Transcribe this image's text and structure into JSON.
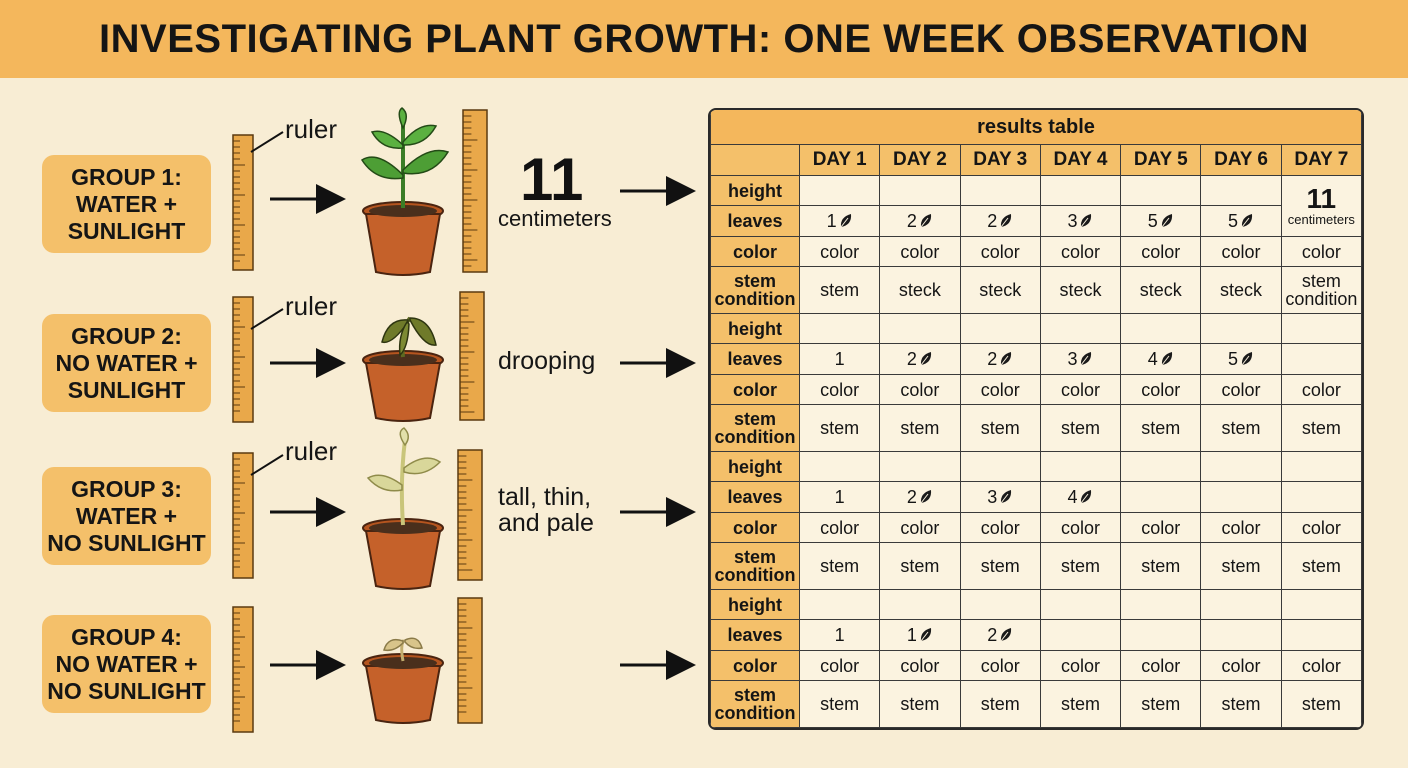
{
  "title": "INVESTIGATING PLANT GROWTH: ONE WEEK OBSERVATION",
  "groups": [
    {
      "lines": [
        "GROUP 1:",
        "WATER +",
        "SUNLIGHT"
      ],
      "ruler_label": "ruler",
      "observation": [
        "centimeters"
      ],
      "observation_value": "11"
    },
    {
      "lines": [
        "GROUP 2:",
        "NO WATER +",
        "SUNLIGHT"
      ],
      "ruler_label": "ruler",
      "observation": [
        "drooping"
      ]
    },
    {
      "lines": [
        "GROUP 3:",
        "WATER +",
        "NO SUNLIGHT"
      ],
      "ruler_label": "ruler",
      "observation": [
        "tall, thin,",
        "and pale"
      ]
    },
    {
      "lines": [
        "GROUP 4:",
        "NO WATER +",
        "NO SUNLIGHT"
      ]
    }
  ],
  "colors": {
    "header": "#f4b75c",
    "group_box": "#f4c06a",
    "background": "#f8edd4",
    "ruler": "#e9a84a",
    "pot": "#c5612a",
    "leaf_healthy": "#4d9e35",
    "leaf_drooping": "#6f7a2a",
    "leaf_pale": "#d9d79a",
    "leaf_dead": "#d8c48a"
  },
  "table": {
    "caption": "results table",
    "days": [
      "DAY 1",
      "DAY 2",
      "DAY 3",
      "DAY 4",
      "DAY 5",
      "DAY 6",
      "DAY 7"
    ],
    "day7_height_value": "11",
    "day7_height_unit": "centimeters",
    "groups": [
      {
        "rows": [
          {
            "label": [
              "height"
            ],
            "cells": [
              "",
              "",
              "",
              "",
              "",
              ""
            ]
          },
          {
            "label": [
              "leaves"
            ],
            "cells": [
              "1",
              "2",
              "2",
              "3",
              "5",
              "5"
            ],
            "leaf_icon": [
              true,
              true,
              true,
              true,
              true,
              true
            ]
          },
          {
            "label": [
              "color"
            ],
            "cells": [
              "color",
              "color",
              "color",
              "color",
              "color",
              "color",
              "color"
            ]
          },
          {
            "label": [
              "stem",
              "condition"
            ],
            "cells": [
              "stem",
              "steck",
              "steck",
              "steck",
              "steck",
              "steck",
              "stem condition"
            ]
          }
        ]
      },
      {
        "rows": [
          {
            "label": [
              "height"
            ],
            "cells": [
              "",
              "",
              "",
              "",
              "",
              "",
              ""
            ]
          },
          {
            "label": [
              "leaves"
            ],
            "cells": [
              "1",
              "2",
              "2",
              "3",
              "4",
              "5",
              ""
            ],
            "leaf_icon": [
              false,
              true,
              true,
              true,
              true,
              true,
              false
            ]
          },
          {
            "label": [
              "color"
            ],
            "cells": [
              "color",
              "color",
              "color",
              "color",
              "color",
              "color",
              "color"
            ]
          },
          {
            "label": [
              "stem",
              "condition"
            ],
            "cells": [
              "stem",
              "stem",
              "stem",
              "stem",
              "stem",
              "stem",
              "stem"
            ]
          }
        ]
      },
      {
        "rows": [
          {
            "label": [
              "height"
            ],
            "cells": [
              "",
              "",
              "",
              "",
              "",
              "",
              ""
            ]
          },
          {
            "label": [
              "leaves"
            ],
            "cells": [
              "1",
              "2",
              "3",
              "4",
              "",
              "",
              ""
            ],
            "leaf_icon": [
              false,
              true,
              true,
              true,
              false,
              false,
              false
            ]
          },
          {
            "label": [
              "color"
            ],
            "cells": [
              "color",
              "color",
              "color",
              "color",
              "color",
              "color",
              "color"
            ]
          },
          {
            "label": [
              "stem",
              "condition"
            ],
            "cells": [
              "stem",
              "stem",
              "stem",
              "stem",
              "stem",
              "stem",
              "stem"
            ]
          }
        ]
      },
      {
        "rows": [
          {
            "label": [
              "height"
            ],
            "cells": [
              "",
              "",
              "",
              "",
              "",
              "",
              ""
            ]
          },
          {
            "label": [
              "leaves"
            ],
            "cells": [
              "1",
              "1",
              "2",
              "",
              "",
              "",
              ""
            ],
            "leaf_icon": [
              false,
              true,
              true,
              false,
              false,
              false,
              false
            ]
          },
          {
            "label": [
              "color"
            ],
            "cells": [
              "color",
              "color",
              "color",
              "color",
              "color",
              "color",
              "color"
            ]
          },
          {
            "label": [
              "stem",
              "condition"
            ],
            "cells": [
              "stem",
              "stem",
              "stem",
              "stem",
              "stem",
              "stem",
              "stem"
            ]
          }
        ]
      }
    ]
  }
}
